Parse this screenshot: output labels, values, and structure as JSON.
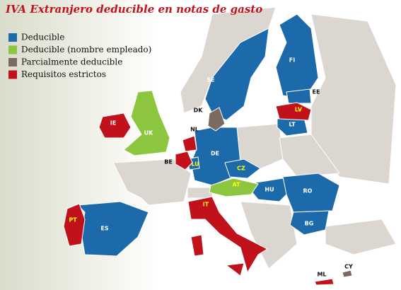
{
  "title": "IVA Extranjero deducible en notas de gasto",
  "legend": [
    {
      "label": "Deducible",
      "color": "#1c6aa9",
      "countries": [
        "FI",
        "SE",
        "DE",
        "CZ",
        "HU",
        "RO",
        "BG",
        "LT",
        "EE",
        "ES",
        "LU"
      ]
    },
    {
      "label": "Deducible (nombre empleado)",
      "color": "#8cc63f",
      "countries": [
        "UK",
        "AT"
      ]
    },
    {
      "label": "Parcialmente deducible",
      "color": "#7a6a62",
      "countries": [
        "DK",
        "CY"
      ]
    },
    {
      "label": "Requisitos estrictos",
      "color": "#c1121c",
      "countries": [
        "IE",
        "NL",
        "BE",
        "LV",
        "PT",
        "IT",
        "ML"
      ]
    }
  ]
}
